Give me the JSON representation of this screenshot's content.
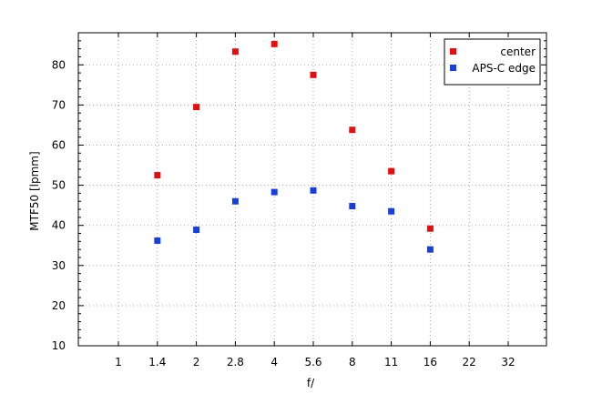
{
  "chart_data": {
    "type": "scatter",
    "title": "",
    "xlabel": "f/",
    "ylabel": "MTF50 [lpmm]",
    "x_categories": [
      "1",
      "1.4",
      "2",
      "2.8",
      "4",
      "5.6",
      "8",
      "11",
      "16",
      "22",
      "32"
    ],
    "ylim": [
      10,
      88
    ],
    "y_ticks": [
      10,
      20,
      30,
      40,
      50,
      60,
      70,
      80
    ],
    "grid": true,
    "legend_position": "top-right",
    "series": [
      {
        "name": "center",
        "color": "#e01010",
        "points": [
          {
            "x": "1.4",
            "y": 52.5
          },
          {
            "x": "2",
            "y": 69.5
          },
          {
            "x": "2.8",
            "y": 83.3
          },
          {
            "x": "4",
            "y": 85.2
          },
          {
            "x": "5.6",
            "y": 77.5
          },
          {
            "x": "8",
            "y": 63.8
          },
          {
            "x": "11",
            "y": 53.5
          },
          {
            "x": "16",
            "y": 39.2
          }
        ]
      },
      {
        "name": "APS-C edge",
        "color": "#1a3fd6",
        "points": [
          {
            "x": "1.4",
            "y": 36.2
          },
          {
            "x": "2",
            "y": 38.9
          },
          {
            "x": "2.8",
            "y": 46.0
          },
          {
            "x": "4",
            "y": 48.3
          },
          {
            "x": "5.6",
            "y": 48.7
          },
          {
            "x": "8",
            "y": 44.8
          },
          {
            "x": "11",
            "y": 43.5
          },
          {
            "x": "16",
            "y": 34.0
          }
        ]
      }
    ]
  }
}
